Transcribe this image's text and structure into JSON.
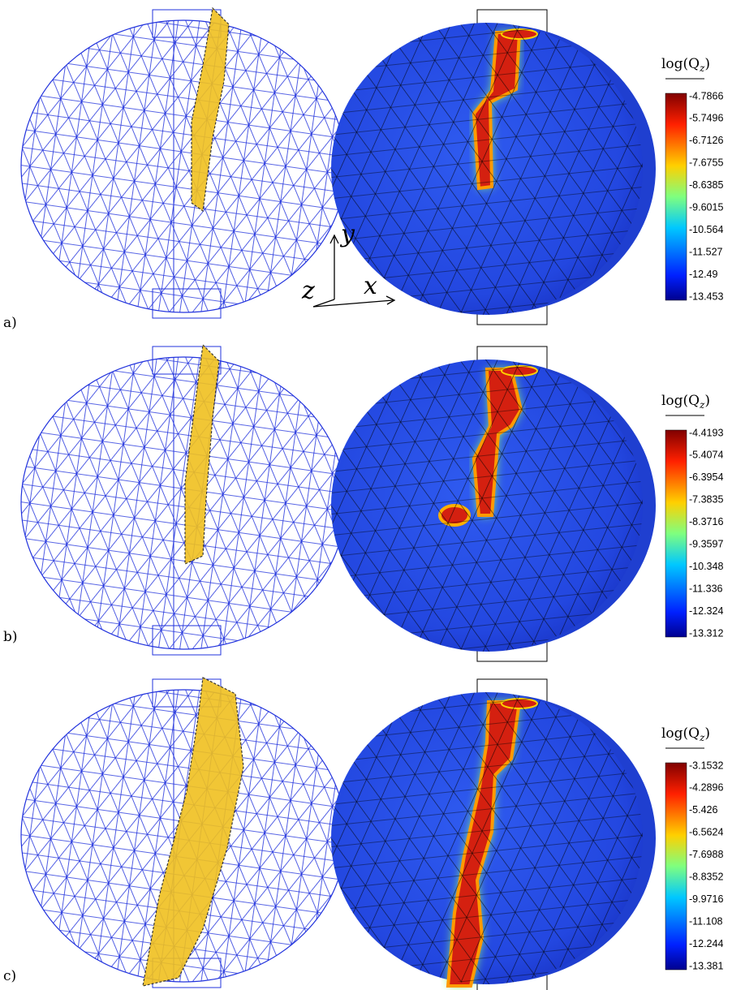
{
  "panels": [
    {
      "label": "a)",
      "colorbar": {
        "title": {
          "text": "log(Q",
          "subscript": "z",
          "close": ")"
        },
        "ticks": [
          "-4.7866",
          "-5.7496",
          "-6.7126",
          "-7.6755",
          "-8.6385",
          "-9.6015",
          "-10.564",
          "-11.527",
          "-12.49",
          "-13.453"
        ]
      }
    },
    {
      "label": "b)",
      "colorbar": {
        "title": {
          "text": "log(Q",
          "subscript": "z",
          "close": ")"
        },
        "ticks": [
          "-4.4193",
          "-5.4074",
          "-6.3954",
          "-7.3835",
          "-8.3716",
          "-9.3597",
          "-10.348",
          "-11.336",
          "-12.324",
          "-13.312"
        ]
      }
    },
    {
      "label": "c)",
      "colorbar": {
        "title": {
          "text": "log(Q",
          "subscript": "z",
          "close": ")"
        },
        "ticks": [
          "-3.1532",
          "-4.2896",
          "-5.426",
          "-6.5624",
          "-7.6988",
          "-8.8352",
          "-9.9716",
          "-11.108",
          "-12.244",
          "-13.381"
        ]
      }
    }
  ],
  "axes": {
    "y": "y",
    "z": "z",
    "x": "x"
  }
}
